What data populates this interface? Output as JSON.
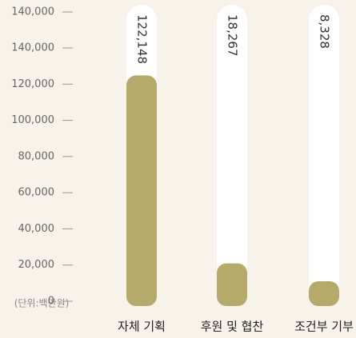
{
  "chart_data": {
    "type": "bar",
    "axis_top_label": "140,000",
    "unit_label": "(단위:백만원)",
    "categories": [
      "자체 기획",
      "후원 및 협찬",
      "조건부 기부"
    ],
    "values": [
      122148,
      18267,
      8328
    ],
    "value_labels": [
      "122,148",
      "18,267",
      "8,328"
    ],
    "color": "#b5aa6a",
    "ylim": [
      0,
      140000
    ],
    "yticks": [
      {
        "value": 0,
        "label": "0"
      },
      {
        "value": 20000,
        "label": "20,000"
      },
      {
        "value": 40000,
        "label": "40,000"
      },
      {
        "value": 60000,
        "label": "60,000"
      },
      {
        "value": 80000,
        "label": "80,000"
      },
      {
        "value": 100000,
        "label": "100,000"
      },
      {
        "value": 120000,
        "label": "120,000"
      },
      {
        "value": 140000,
        "label": "140,000"
      }
    ]
  }
}
